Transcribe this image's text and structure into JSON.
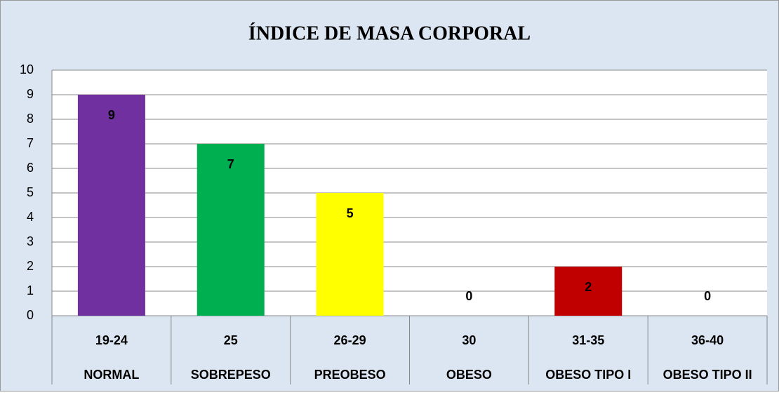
{
  "chart_data": {
    "type": "bar",
    "title": "ÍNDICE DE MASA CORPORAL",
    "categories": [
      "19-24",
      "25",
      "26-29",
      "30",
      "31-35",
      "36-40"
    ],
    "category_labels": [
      "NORMAL",
      "SOBREPESO",
      "PREOBESO",
      "OBESO",
      "OBESO TIPO I",
      "OBESO TIPO II"
    ],
    "values": [
      9,
      7,
      5,
      0,
      2,
      0
    ],
    "colors": [
      "#7030a0",
      "#00b050",
      "#ffff00",
      "#4f81bd",
      "#c00000",
      "#4f81bd"
    ],
    "ylim": [
      0,
      10
    ],
    "yticks": [
      0,
      1,
      2,
      3,
      4,
      5,
      6,
      7,
      8,
      9,
      10
    ],
    "grid": true
  }
}
